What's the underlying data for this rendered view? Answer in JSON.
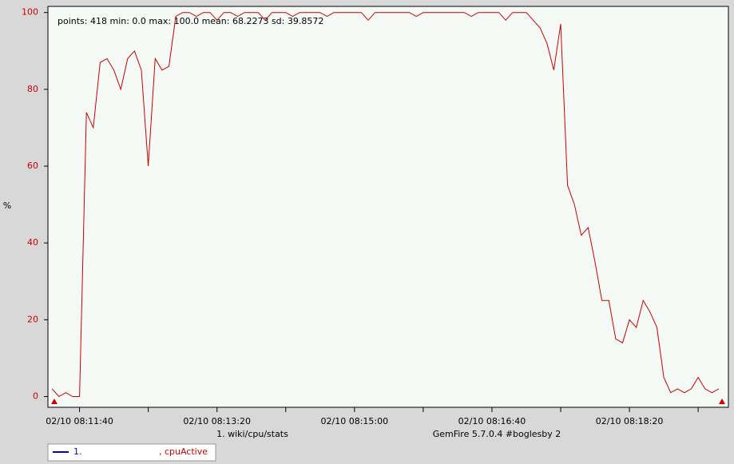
{
  "chart_data": {
    "type": "line",
    "stats": "points: 418 min: 0.0 max: 100.0 mean: 68.2273 sd: 39.8572",
    "y_label": "%",
    "x_label": "1. wiki/cpu/stats",
    "x_label_right": "GemFire 5.7.0.4 #boglesby 2",
    "legend_number": "1.",
    "legend_line_color": "#0000cc",
    "tick_color": "#cc0000",
    "x": [
      "02/10 08:11:20",
      "02/10 08:11:25",
      "02/10 08:11:30",
      "02/10 08:11:35",
      "02/10 08:11:40",
      "02/10 08:11:45",
      "02/10 08:11:50",
      "02/10 08:11:55",
      "02/10 08:12:00",
      "02/10 08:12:05",
      "02/10 08:12:10",
      "02/10 08:12:15",
      "02/10 08:12:20",
      "02/10 08:12:25",
      "02/10 08:12:30",
      "02/10 08:12:35",
      "02/10 08:12:40",
      "02/10 08:12:45",
      "02/10 08:12:50",
      "02/10 08:12:55",
      "02/10 08:13:00",
      "02/10 08:13:05",
      "02/10 08:13:10",
      "02/10 08:13:15",
      "02/10 08:13:20",
      "02/10 08:13:25",
      "02/10 08:13:30",
      "02/10 08:13:35",
      "02/10 08:13:40",
      "02/10 08:13:45",
      "02/10 08:13:50",
      "02/10 08:13:55",
      "02/10 08:14:00",
      "02/10 08:14:05",
      "02/10 08:14:10",
      "02/10 08:14:15",
      "02/10 08:14:20",
      "02/10 08:14:25",
      "02/10 08:14:30",
      "02/10 08:14:35",
      "02/10 08:14:40",
      "02/10 08:14:45",
      "02/10 08:14:50",
      "02/10 08:14:55",
      "02/10 08:15:00",
      "02/10 08:15:05",
      "02/10 08:15:10",
      "02/10 08:15:15",
      "02/10 08:15:20",
      "02/10 08:15:25",
      "02/10 08:15:30",
      "02/10 08:15:35",
      "02/10 08:15:40",
      "02/10 08:15:45",
      "02/10 08:15:50",
      "02/10 08:15:55",
      "02/10 08:16:00",
      "02/10 08:16:05",
      "02/10 08:16:10",
      "02/10 08:16:15",
      "02/10 08:16:20",
      "02/10 08:16:25",
      "02/10 08:16:30",
      "02/10 08:16:35",
      "02/10 08:16:40",
      "02/10 08:16:45",
      "02/10 08:16:50",
      "02/10 08:16:55",
      "02/10 08:17:00",
      "02/10 08:17:05",
      "02/10 08:17:10",
      "02/10 08:17:15",
      "02/10 08:17:20",
      "02/10 08:17:25",
      "02/10 08:17:30",
      "02/10 08:17:35",
      "02/10 08:17:40",
      "02/10 08:17:45",
      "02/10 08:17:50",
      "02/10 08:17:55",
      "02/10 08:18:00",
      "02/10 08:18:05",
      "02/10 08:18:10",
      "02/10 08:18:15",
      "02/10 08:18:20",
      "02/10 08:18:25",
      "02/10 08:18:30",
      "02/10 08:18:35",
      "02/10 08:18:40",
      "02/10 08:18:45",
      "02/10 08:18:50",
      "02/10 08:18:55",
      "02/10 08:19:00",
      "02/10 08:19:05",
      "02/10 08:19:10",
      "02/10 08:19:15",
      "02/10 08:19:20",
      "02/10 08:19:25"
    ],
    "series": [
      {
        "name": ", cpuActive",
        "color": "#cc0000",
        "values": [
          2,
          0,
          1,
          0,
          0,
          74,
          70,
          87,
          88,
          85,
          80,
          88,
          90,
          85,
          60,
          88,
          85,
          86,
          99,
          100,
          100,
          99,
          100,
          100,
          98,
          100,
          100,
          99,
          100,
          100,
          100,
          98,
          100,
          100,
          100,
          99,
          100,
          100,
          100,
          100,
          99,
          100,
          100,
          100,
          100,
          100,
          98,
          100,
          100,
          100,
          100,
          100,
          100,
          99,
          100,
          100,
          100,
          100,
          100,
          100,
          100,
          99,
          100,
          100,
          100,
          100,
          98,
          100,
          100,
          100,
          98,
          96,
          92,
          85,
          97,
          55,
          50,
          42,
          44,
          35,
          25,
          25,
          15,
          14,
          20,
          18,
          25,
          22,
          18,
          5,
          1,
          2,
          1,
          2,
          5,
          2,
          1,
          2
        ]
      }
    ],
    "xlim": [
      "02/10 08:11:17",
      "02/10 08:19:32"
    ],
    "xticks": [
      {
        "value": "02/10 08:11:40",
        "label": "02/10 08:11:40"
      },
      {
        "value": "02/10 08:12:30",
        "label": null
      },
      {
        "value": "02/10 08:13:20",
        "label": "02/10 08:13:20"
      },
      {
        "value": "02/10 08:14:10",
        "label": null
      },
      {
        "value": "02/10 08:15:00",
        "label": "02/10 08:15:00"
      },
      {
        "value": "02/10 08:15:50",
        "label": null
      },
      {
        "value": "02/10 08:16:40",
        "label": "02/10 08:16:40"
      },
      {
        "value": "02/10 08:17:30",
        "label": null
      },
      {
        "value": "02/10 08:18:20",
        "label": "02/10 08:18:20"
      },
      {
        "value": "02/10 08:19:10",
        "label": null
      }
    ],
    "ylim": [
      -2.8,
      101.6
    ],
    "yticks": [
      0,
      20,
      40,
      60,
      80,
      100
    ]
  }
}
